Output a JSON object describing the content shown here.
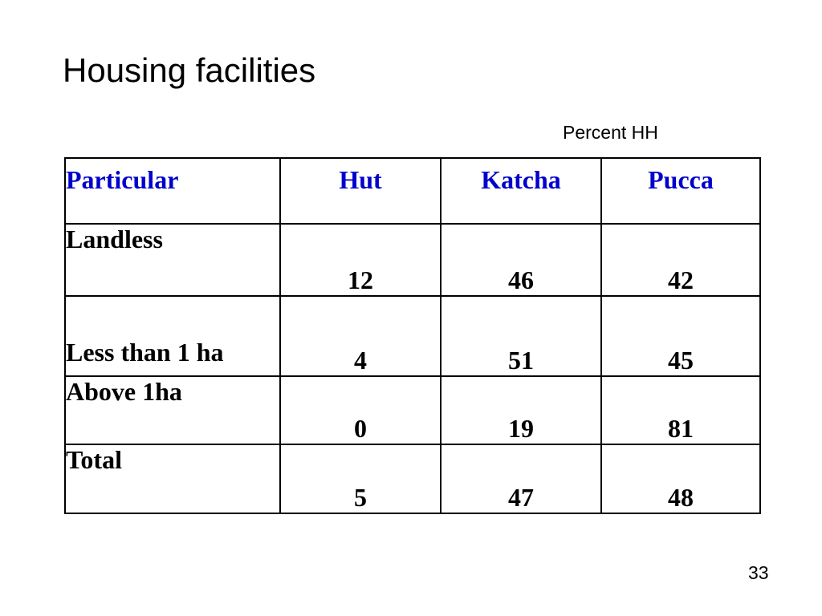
{
  "slide": {
    "title": "Housing facilities",
    "caption": "Percent HH",
    "page_number": "33"
  },
  "table": {
    "header_text_color": "#0000cc",
    "headers": [
      "Particular",
      "Hut",
      "Katcha",
      "Pucca"
    ],
    "rows": [
      {
        "label": "Landless",
        "values": [
          "12",
          "46",
          "42"
        ]
      },
      {
        "label": "Less than 1 ha",
        "values": [
          "4",
          "51",
          "45"
        ]
      },
      {
        "label": "Above 1ha",
        "values": [
          "0",
          "19",
          "81"
        ]
      },
      {
        "label": "Total",
        "values": [
          "5",
          "47",
          "48"
        ]
      }
    ]
  }
}
